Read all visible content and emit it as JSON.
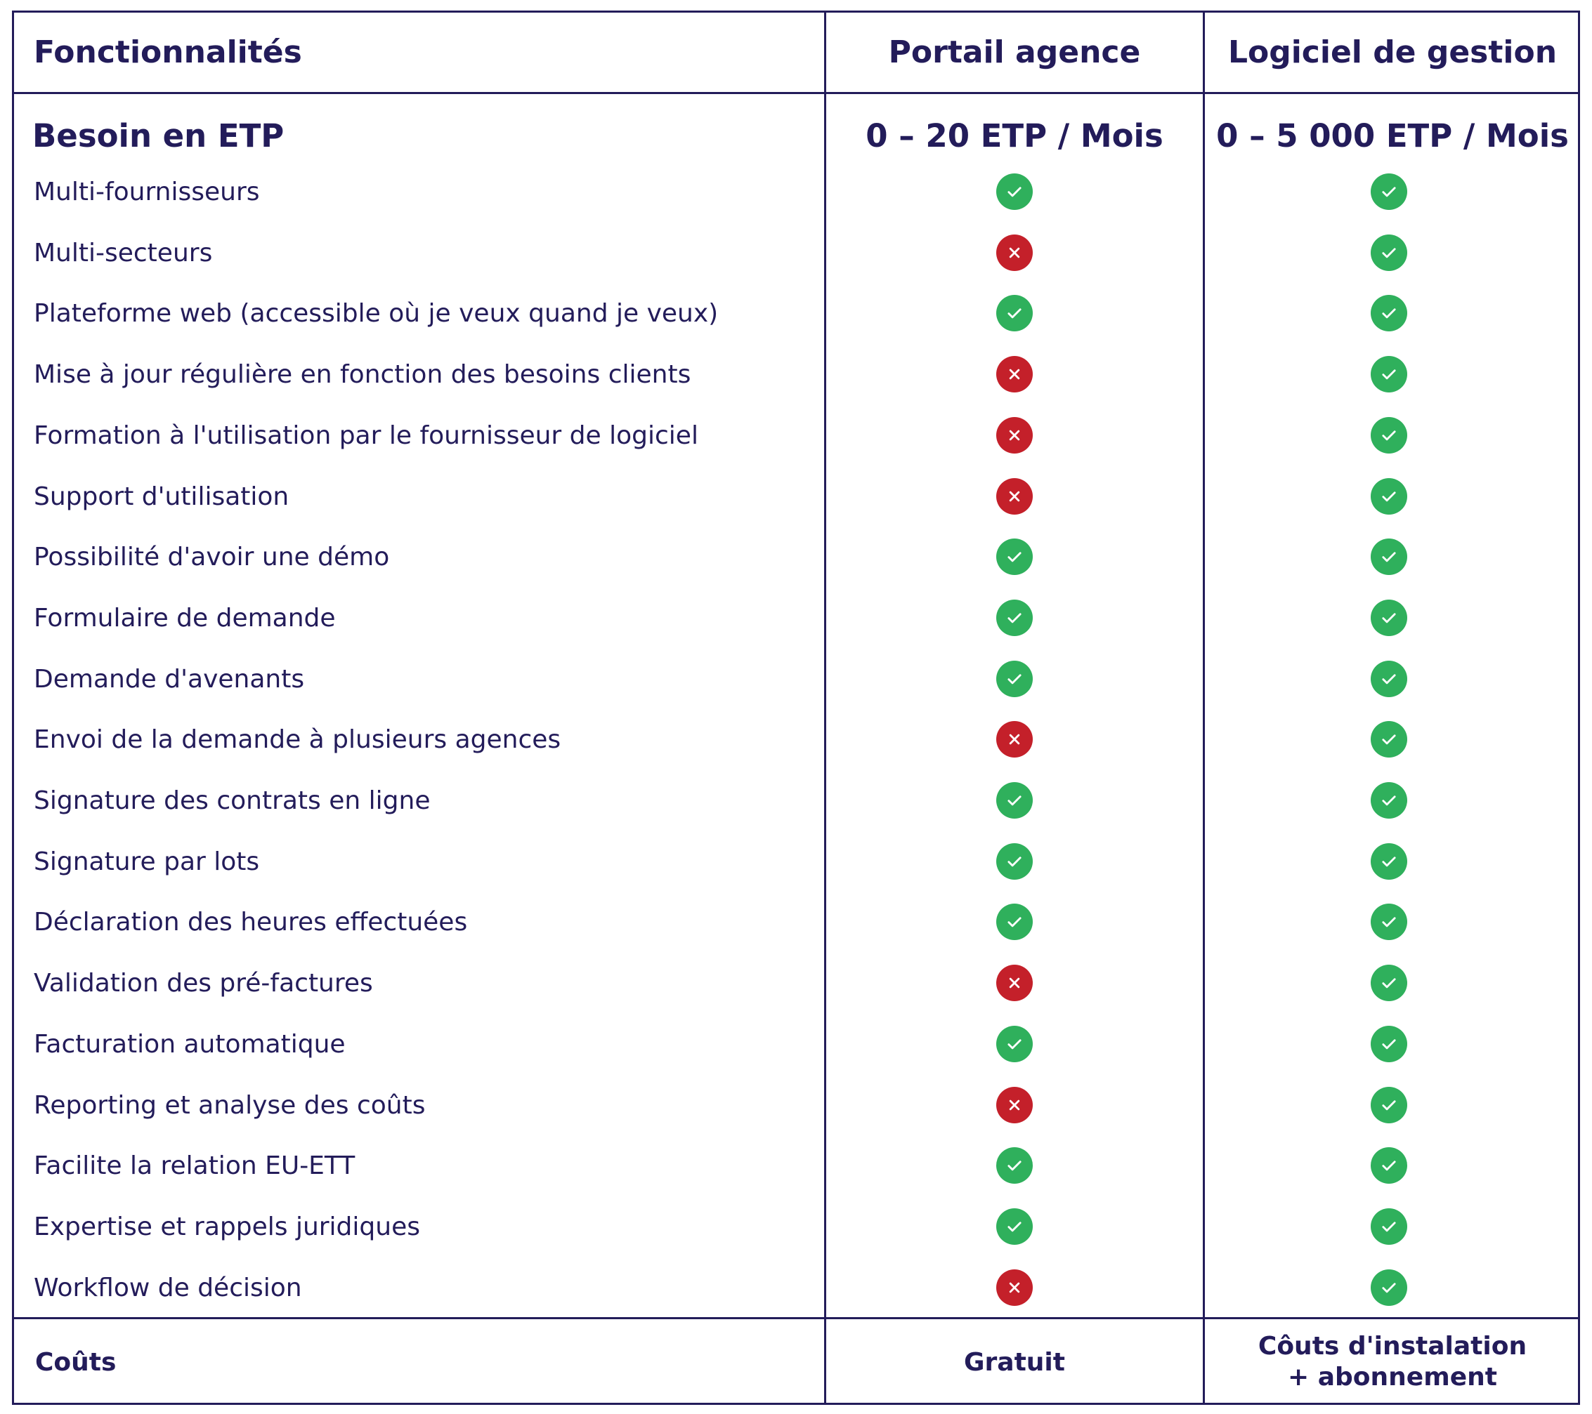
{
  "colors": {
    "text": "#231c5a",
    "border": "#231c5a",
    "check": "#2fb05c",
    "cross": "#c4202a"
  },
  "header": {
    "features": "Fonctionnalités",
    "portail": "Portail agence",
    "logiciel": "Logiciel de gestion"
  },
  "etp": {
    "label": "Besoin en ETP",
    "portail": "0 – 20 ETP / Mois",
    "logiciel": "0 – 5 000 ETP / Mois"
  },
  "rows": [
    {
      "label": "Multi-fournisseurs",
      "portail": "check",
      "logiciel": "check"
    },
    {
      "label": "Multi-secteurs",
      "portail": "cross",
      "logiciel": "check"
    },
    {
      "label": "Plateforme web (accessible où je veux quand je veux)",
      "portail": "check",
      "logiciel": "check"
    },
    {
      "label": "Mise à jour régulière en fonction des besoins clients",
      "portail": "cross",
      "logiciel": "check"
    },
    {
      "label": "Formation à l'utilisation par le fournisseur de logiciel",
      "portail": "cross",
      "logiciel": "check"
    },
    {
      "label": "Support d'utilisation",
      "portail": "cross",
      "logiciel": "check"
    },
    {
      "label": "Possibilité d'avoir une démo",
      "portail": "check",
      "logiciel": "check"
    },
    {
      "label": "Formulaire de demande",
      "portail": "check",
      "logiciel": "check"
    },
    {
      "label": "Demande d'avenants",
      "portail": "check",
      "logiciel": "check"
    },
    {
      "label": "Envoi de la demande à plusieurs agences",
      "portail": "cross",
      "logiciel": "check"
    },
    {
      "label": "Signature des contrats en ligne",
      "portail": "check",
      "logiciel": "check"
    },
    {
      "label": "Signature par lots",
      "portail": "check",
      "logiciel": "check"
    },
    {
      "label": "Déclaration des heures effectuées",
      "portail": "check",
      "logiciel": "check"
    },
    {
      "label": "Validation des pré-factures",
      "portail": "cross",
      "logiciel": "check"
    },
    {
      "label": "Facturation automatique",
      "portail": "check",
      "logiciel": "check"
    },
    {
      "label": "Reporting et analyse des coûts",
      "portail": "cross",
      "logiciel": "check"
    },
    {
      "label": "Facilite la relation EU-ETT",
      "portail": "check",
      "logiciel": "check"
    },
    {
      "label": "Expertise et rappels juridiques",
      "portail": "check",
      "logiciel": "check"
    },
    {
      "label": "Workflow de décision",
      "portail": "cross",
      "logiciel": "check"
    }
  ],
  "footer": {
    "label": "Coûts",
    "portail": "Gratuit",
    "logiciel_line1": "Côuts d'instalation",
    "logiciel_line2": "+ abonnement"
  }
}
